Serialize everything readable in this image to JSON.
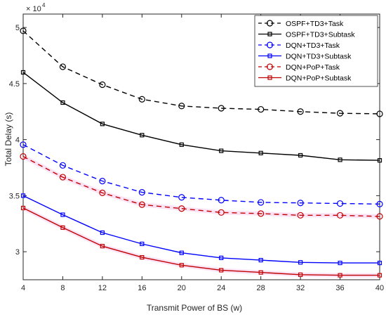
{
  "chart_data": {
    "type": "line",
    "title": "",
    "xlabel": "Transmit Power of BS (w)",
    "ylabel": "Total Delay (s)",
    "y_multiplier_base": "× 10",
    "y_multiplier_exp": "4",
    "x": [
      4,
      8,
      12,
      16,
      20,
      24,
      28,
      32,
      36,
      40
    ],
    "x_ticks": [
      "4",
      "8",
      "12",
      "16",
      "20",
      "24",
      "28",
      "32",
      "36",
      "40"
    ],
    "y_ticks": [
      "3",
      "3.5",
      "4",
      "4.5",
      "5"
    ],
    "y_tick_values": [
      3.0,
      3.5,
      4.0,
      4.5,
      5.0
    ],
    "xlim": [
      4,
      40
    ],
    "ylim": [
      2.75,
      5.12
    ],
    "grid": false,
    "legend_position": "top-right",
    "series": [
      {
        "name": "OSPF+TD3+Task",
        "color": "#000000",
        "dash": "dashed",
        "marker": "circle",
        "values": [
          4.97,
          4.65,
          4.49,
          4.36,
          4.3,
          4.28,
          4.27,
          4.25,
          4.235,
          4.23
        ]
      },
      {
        "name": "OSPF+TD3+Subtask",
        "color": "#000000",
        "dash": "solid",
        "marker": "square",
        "values": [
          4.6,
          4.33,
          4.14,
          4.04,
          3.955,
          3.9,
          3.88,
          3.86,
          3.82,
          3.815
        ]
      },
      {
        "name": "DQN+TD3+Task",
        "color": "#0000ff",
        "dash": "dashed",
        "marker": "circle",
        "values": [
          3.955,
          3.77,
          3.63,
          3.53,
          3.485,
          3.46,
          3.44,
          3.435,
          3.43,
          3.425
        ]
      },
      {
        "name": "DQN+TD3+Subtask",
        "color": "#0000ff",
        "dash": "solid",
        "marker": "square",
        "values": [
          3.5,
          3.33,
          3.17,
          3.07,
          2.99,
          2.945,
          2.925,
          2.905,
          2.9,
          2.9
        ]
      },
      {
        "name": "DQN+PoP+Task",
        "color": "#c00000",
        "dash": "dashed",
        "marker": "circle",
        "values": [
          3.85,
          3.665,
          3.525,
          3.42,
          3.385,
          3.35,
          3.34,
          3.325,
          3.325,
          3.315
        ]
      },
      {
        "name": "DQN+PoP+Subtask",
        "color": "#c00000",
        "dash": "solid",
        "marker": "square",
        "values": [
          3.39,
          3.215,
          3.05,
          2.95,
          2.88,
          2.835,
          2.815,
          2.795,
          2.79,
          2.79
        ]
      }
    ]
  }
}
